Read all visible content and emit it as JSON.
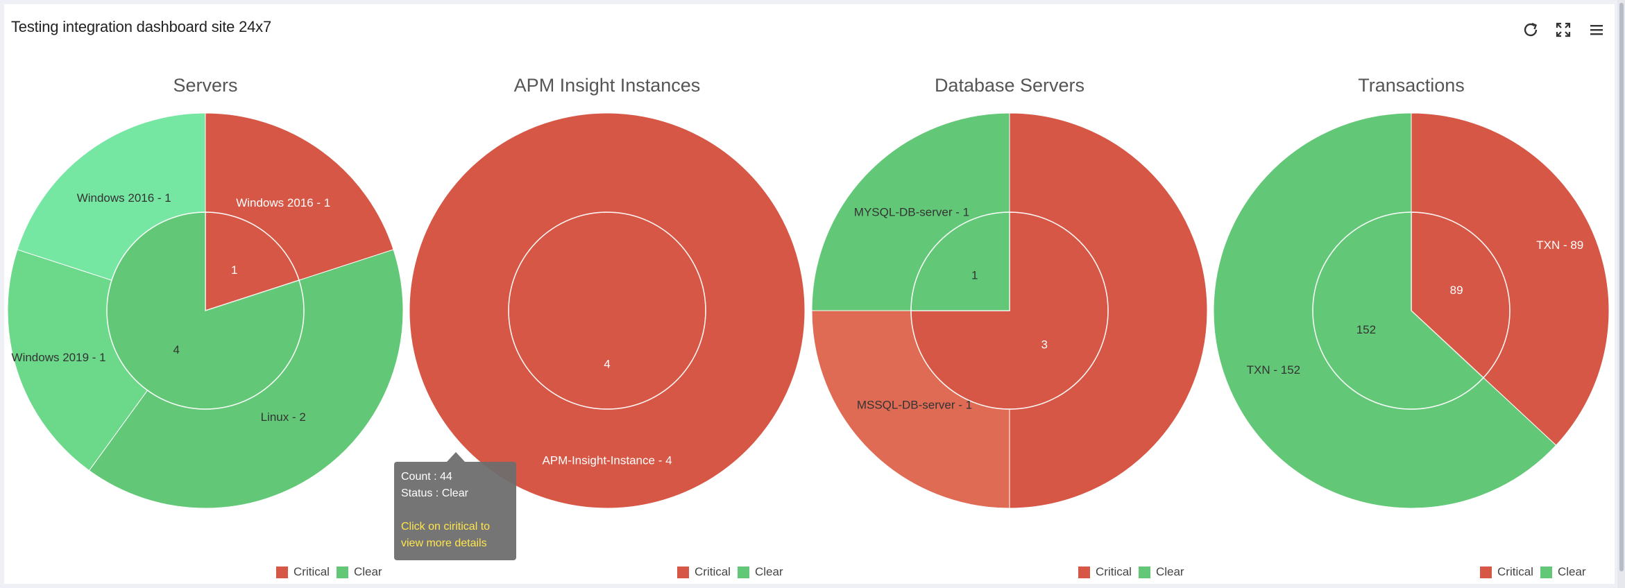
{
  "header": {
    "title": "Testing integration dashboard site 24x7",
    "icons": [
      "refresh-icon",
      "fullscreen-icon",
      "menu-icon"
    ]
  },
  "colors": {
    "critical": "#d65745",
    "critical_light": "#e06b54",
    "clear": "#62c877",
    "clear_light": "#76e6a3",
    "clear_mid": "#6cd88a"
  },
  "legend": {
    "critical": "Critical",
    "clear": "Clear"
  },
  "tooltip": {
    "count": "Count : 44",
    "status": "Status : Clear",
    "hint_line1": "Click on ciritical to",
    "hint_line2": "view more details"
  },
  "chart_data": [
    {
      "type": "pie",
      "title": "Servers",
      "inner": [
        {
          "label": "1",
          "value": 1,
          "status": "critical"
        },
        {
          "label": "4",
          "value": 4,
          "status": "clear"
        }
      ],
      "outer": [
        {
          "label": "Windows 2016 - 1",
          "value": 1,
          "status": "critical"
        },
        {
          "label": "Linux - 2",
          "value": 2,
          "status": "clear"
        },
        {
          "label": "Windows 2019 - 1",
          "value": 1,
          "status": "clear"
        },
        {
          "label": "Windows 2016 - 1",
          "value": 1,
          "status": "clear"
        }
      ]
    },
    {
      "type": "pie",
      "title": "APM Insight Instances",
      "inner": [
        {
          "label": "4",
          "value": 4,
          "status": "critical"
        }
      ],
      "outer": [
        {
          "label": "APM-Insight-Instance - 4",
          "value": 4,
          "status": "critical"
        }
      ]
    },
    {
      "type": "pie",
      "title": "Database Servers",
      "inner": [
        {
          "label": "3",
          "value": 3,
          "status": "critical"
        },
        {
          "label": "1",
          "value": 1,
          "status": "clear"
        }
      ],
      "outer": [
        {
          "label": "",
          "value": 2,
          "status": "critical"
        },
        {
          "label": "MSSQL-DB-server - 1",
          "value": 1,
          "status": "critical"
        },
        {
          "label": "MYSQL-DB-server - 1",
          "value": 1,
          "status": "clear"
        }
      ]
    },
    {
      "type": "pie",
      "title": "Transactions",
      "inner": [
        {
          "label": "89",
          "value": 89,
          "status": "critical"
        },
        {
          "label": "152",
          "value": 152,
          "status": "clear"
        }
      ],
      "outer": [
        {
          "label": "TXN - 89",
          "value": 89,
          "status": "critical"
        },
        {
          "label": "TXN - 152",
          "value": 152,
          "status": "clear"
        }
      ]
    }
  ]
}
